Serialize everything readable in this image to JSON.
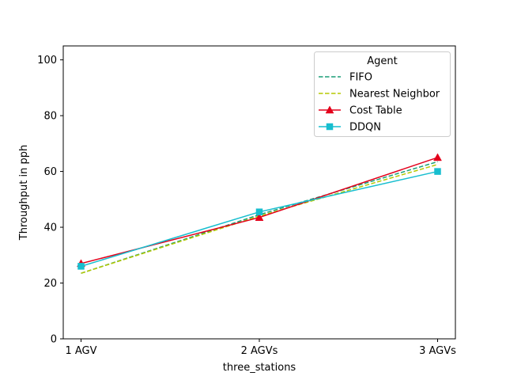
{
  "chart_data": {
    "type": "line",
    "categories": [
      "1 AGV",
      "2 AGVs",
      "3 AGVs"
    ],
    "xlabel": "three_stations",
    "ylabel": "Throughput in pph",
    "ylim": [
      0,
      105
    ],
    "yticks": [
      0,
      20,
      40,
      60,
      80,
      100
    ],
    "grid": false,
    "legend": {
      "title": "Agent",
      "placement": "top-right"
    },
    "series": [
      {
        "name": "FIFO",
        "values": [
          23.5,
          44.5,
          63.5
        ],
        "color": "#1a9e77",
        "dash": "dashed",
        "marker": "none"
      },
      {
        "name": "Nearest Neighbor",
        "values": [
          23.5,
          44.0,
          62.5
        ],
        "color": "#b5c800",
        "dash": "dashed",
        "marker": "none"
      },
      {
        "name": "Cost Table",
        "values": [
          27.0,
          43.5,
          65.0
        ],
        "color": "#e3001b",
        "dash": "solid",
        "marker": "triangle"
      },
      {
        "name": "DDQN",
        "values": [
          26.0,
          45.5,
          60.0
        ],
        "color": "#17becf",
        "dash": "solid",
        "marker": "square"
      }
    ]
  }
}
